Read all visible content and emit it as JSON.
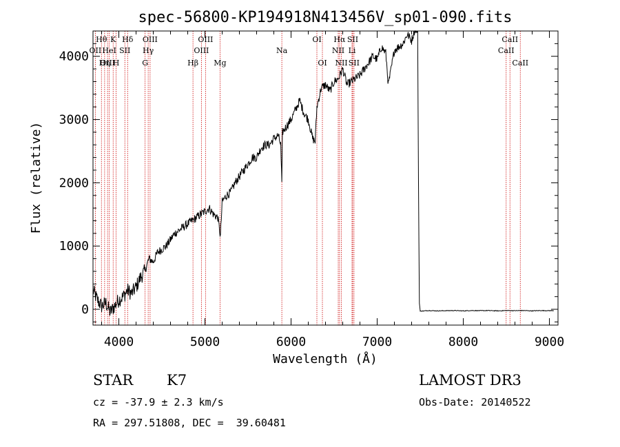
{
  "chart_data": {
    "type": "line",
    "title": "spec-56800-KP194918N413456V_sp01-090.fits",
    "xlabel": "Wavelength (Å)",
    "ylabel": "Flux (relative)",
    "xlim": [
      3700,
      9100
    ],
    "ylim": [
      -250,
      4400
    ],
    "x_ticks": [
      4000,
      5000,
      6000,
      7000,
      8000,
      9000
    ],
    "x_tick_labels": [
      "4000",
      "5000",
      "6000",
      "7000",
      "8000",
      "9000"
    ],
    "y_ticks": [
      0,
      1000,
      2000,
      3000,
      4000
    ],
    "y_tick_labels": [
      "0",
      "1000",
      "2000",
      "3000",
      "4000"
    ],
    "series": [
      {
        "name": "flux",
        "x": [
          3700,
          3750,
          3800,
          3850,
          3900,
          3950,
          4000,
          4050,
          4100,
          4150,
          4200,
          4250,
          4300,
          4350,
          4400,
          4450,
          4500,
          4550,
          4600,
          4650,
          4700,
          4750,
          4800,
          4850,
          4900,
          4950,
          5000,
          5050,
          5100,
          5150,
          5180,
          5200,
          5250,
          5300,
          5350,
          5400,
          5450,
          5500,
          5550,
          5600,
          5650,
          5700,
          5750,
          5800,
          5850,
          5880,
          5893,
          5900,
          5950,
          6000,
          6050,
          6100,
          6150,
          6200,
          6250,
          6280,
          6300,
          6350,
          6400,
          6450,
          6500,
          6550,
          6600,
          6650,
          6700,
          6750,
          6800,
          6850,
          6900,
          6950,
          7000,
          7050,
          7100,
          7130,
          7150,
          7200,
          7250,
          7300,
          7350,
          7400,
          7430,
          7450,
          7470,
          7480,
          7490,
          7500,
          7600,
          7700,
          7800,
          7900,
          8000,
          8100,
          8200,
          8300,
          8400,
          8500,
          8600,
          8700,
          8800,
          8900,
          9000,
          9050
        ],
        "y": [
          300,
          150,
          50,
          100,
          -50,
          50,
          150,
          200,
          300,
          250,
          350,
          500,
          600,
          800,
          750,
          900,
          950,
          1000,
          1100,
          1200,
          1250,
          1300,
          1350,
          1400,
          1450,
          1500,
          1550,
          1600,
          1500,
          1450,
          1150,
          1700,
          1800,
          1850,
          2000,
          2100,
          2200,
          2300,
          2400,
          2400,
          2550,
          2600,
          2600,
          2700,
          2750,
          2600,
          1950,
          2800,
          2900,
          3000,
          3150,
          3300,
          3100,
          3000,
          2700,
          2650,
          3200,
          3500,
          3550,
          3450,
          3600,
          3650,
          3800,
          3550,
          3600,
          3650,
          3700,
          3800,
          3900,
          4000,
          3950,
          4150,
          4050,
          3550,
          3700,
          4100,
          4150,
          4200,
          4350,
          4250,
          4400,
          4450,
          4380,
          2000,
          100,
          -30,
          -20,
          -25,
          -22,
          -20,
          -25,
          -20,
          -22,
          -20,
          -25,
          -20,
          -22,
          -20,
          -25,
          -20,
          -22,
          -20
        ]
      }
    ],
    "line_markers": [
      {
        "label": "Hθ",
        "wl": 3798,
        "row": 1
      },
      {
        "label": "OII",
        "wl": 3727,
        "row": 2
      },
      {
        "label": "OIII",
        "wl": 3869,
        "row": 3
      },
      {
        "label": "K",
        "wl": 3934,
        "row": 1
      },
      {
        "label": "Hδ",
        "wl": 4102,
        "row": 1
      },
      {
        "label": "HeI",
        "wl": 3889,
        "row": 2
      },
      {
        "label": "SII",
        "wl": 4070,
        "row": 2
      },
      {
        "label": "Hη",
        "wl": 3835,
        "row": 3
      },
      {
        "label": "H",
        "wl": 3968,
        "row": 3
      },
      {
        "label": "OIII",
        "wl": 4363,
        "row": 1
      },
      {
        "label": "Hγ",
        "wl": 4341,
        "row": 2
      },
      {
        "label": "G",
        "wl": 4305,
        "row": 3
      },
      {
        "label": "OIII",
        "wl": 5007,
        "row": 1
      },
      {
        "label": "OIII",
        "wl": 4959,
        "row": 2
      },
      {
        "label": "Hβ",
        "wl": 4861,
        "row": 3
      },
      {
        "label": "Mg",
        "wl": 5175,
        "row": 3
      },
      {
        "label": "Na",
        "wl": 5893,
        "row": 2
      },
      {
        "label": "OI",
        "wl": 6300,
        "row": 1
      },
      {
        "label": "OI",
        "wl": 6364,
        "row": 3
      },
      {
        "label": "Hα",
        "wl": 6563,
        "row": 1
      },
      {
        "label": "SII",
        "wl": 6716,
        "row": 1
      },
      {
        "label": "NII",
        "wl": 6548,
        "row": 2
      },
      {
        "label": "Li",
        "wl": 6708,
        "row": 2
      },
      {
        "label": "NII",
        "wl": 6584,
        "row": 3
      },
      {
        "label": "SII",
        "wl": 6731,
        "row": 3
      },
      {
        "label": "CaII",
        "wl": 8542,
        "row": 1
      },
      {
        "label": "CaII",
        "wl": 8498,
        "row": 2
      },
      {
        "label": "CaII",
        "wl": 8662,
        "row": 3
      }
    ],
    "marker_color": "#cc0000",
    "line_color": "#000000",
    "grid": false
  },
  "info": {
    "object_class": "STAR",
    "subclass": "K7",
    "survey": "LAMOST DR3",
    "cz": "cz = -37.9 ± 2.3 km/s",
    "obs_date": "Obs-Date: 20140522",
    "coords": "RA = 297.51808, DEC =  39.60481"
  }
}
